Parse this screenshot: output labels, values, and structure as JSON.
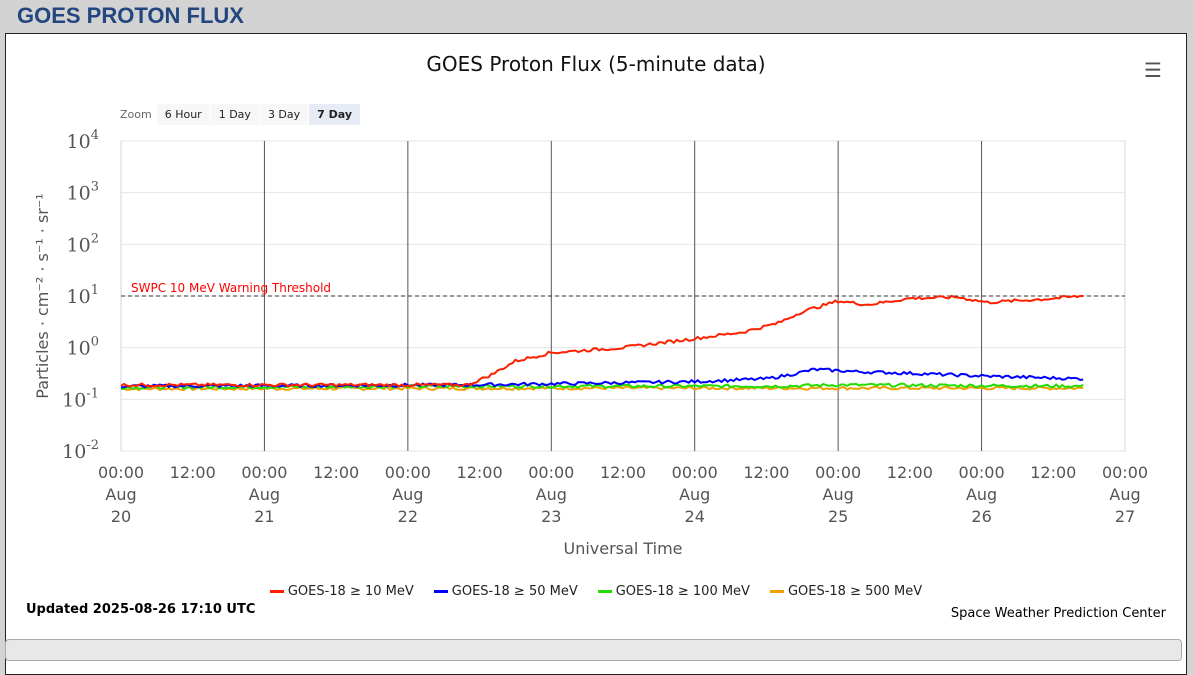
{
  "header": {
    "title": "GOES PROTON FLUX"
  },
  "zoom": {
    "label": "Zoom",
    "options": [
      "6 Hour",
      "1 Day",
      "3 Day",
      "7 Day"
    ],
    "selected": "7 Day"
  },
  "footer": {
    "updated": "Updated 2025-08-26 17:10 UTC",
    "credit": "Space Weather Prediction Center"
  },
  "chart_data": {
    "type": "line",
    "title": "GOES Proton Flux (5-minute data)",
    "xlabel": "Universal Time",
    "ylabel": "Particles · cm⁻² · s⁻¹ · sr⁻¹",
    "yscale": "log",
    "ylim": [
      0.01,
      10000
    ],
    "ytick_exponents": [
      4,
      3,
      2,
      1,
      0,
      -1,
      -2
    ],
    "x_unit": "hours since 2025-08-20 00:00 UTC",
    "xlim": [
      0,
      168
    ],
    "xticks": [
      {
        "t": "00:00",
        "d": "Aug",
        "n": "20"
      },
      {
        "t": "12:00"
      },
      {
        "t": "00:00",
        "d": "Aug",
        "n": "21"
      },
      {
        "t": "12:00"
      },
      {
        "t": "00:00",
        "d": "Aug",
        "n": "22"
      },
      {
        "t": "12:00"
      },
      {
        "t": "00:00",
        "d": "Aug",
        "n": "23"
      },
      {
        "t": "12:00"
      },
      {
        "t": "00:00",
        "d": "Aug",
        "n": "24"
      },
      {
        "t": "12:00"
      },
      {
        "t": "00:00",
        "d": "Aug",
        "n": "25"
      },
      {
        "t": "12:00"
      },
      {
        "t": "00:00",
        "d": "Aug",
        "n": "26"
      },
      {
        "t": "12:00"
      },
      {
        "t": "00:00",
        "d": "Aug",
        "n": "27"
      }
    ],
    "threshold": {
      "value": 10,
      "label": "SWPC 10 MeV Warning Threshold",
      "color": "#ff0000"
    },
    "series": [
      {
        "name": "GOES-18 ≥ 10 MeV",
        "color": "#ff2000",
        "points": [
          [
            0,
            0.19
          ],
          [
            30,
            0.19
          ],
          [
            58,
            0.19
          ],
          [
            62,
            0.3
          ],
          [
            66,
            0.55
          ],
          [
            72,
            0.8
          ],
          [
            84,
            1.0
          ],
          [
            96,
            1.5
          ],
          [
            104,
            2.0
          ],
          [
            110,
            3.0
          ],
          [
            114,
            5
          ],
          [
            120,
            8
          ],
          [
            125,
            6.8
          ],
          [
            132,
            9
          ],
          [
            140,
            9.5
          ],
          [
            145,
            7.5
          ],
          [
            155,
            8.8
          ],
          [
            161,
            10
          ]
        ]
      },
      {
        "name": "GOES-18 ≥ 50 MeV",
        "color": "#0000ff",
        "points": [
          [
            0,
            0.18
          ],
          [
            58,
            0.19
          ],
          [
            72,
            0.2
          ],
          [
            96,
            0.22
          ],
          [
            108,
            0.25
          ],
          [
            112,
            0.3
          ],
          [
            116,
            0.38
          ],
          [
            124,
            0.34
          ],
          [
            132,
            0.32
          ],
          [
            145,
            0.28
          ],
          [
            161,
            0.25
          ]
        ]
      },
      {
        "name": "GOES-18 ≥ 100 MeV",
        "color": "#22dd00",
        "points": [
          [
            0,
            0.17
          ],
          [
            60,
            0.18
          ],
          [
            110,
            0.18
          ],
          [
            120,
            0.19
          ],
          [
            161,
            0.18
          ]
        ]
      },
      {
        "name": "GOES-18 ≥ 500 MeV",
        "color": "#f0a000",
        "points": [
          [
            0,
            0.16
          ],
          [
            80,
            0.165
          ],
          [
            161,
            0.165
          ]
        ]
      }
    ]
  }
}
